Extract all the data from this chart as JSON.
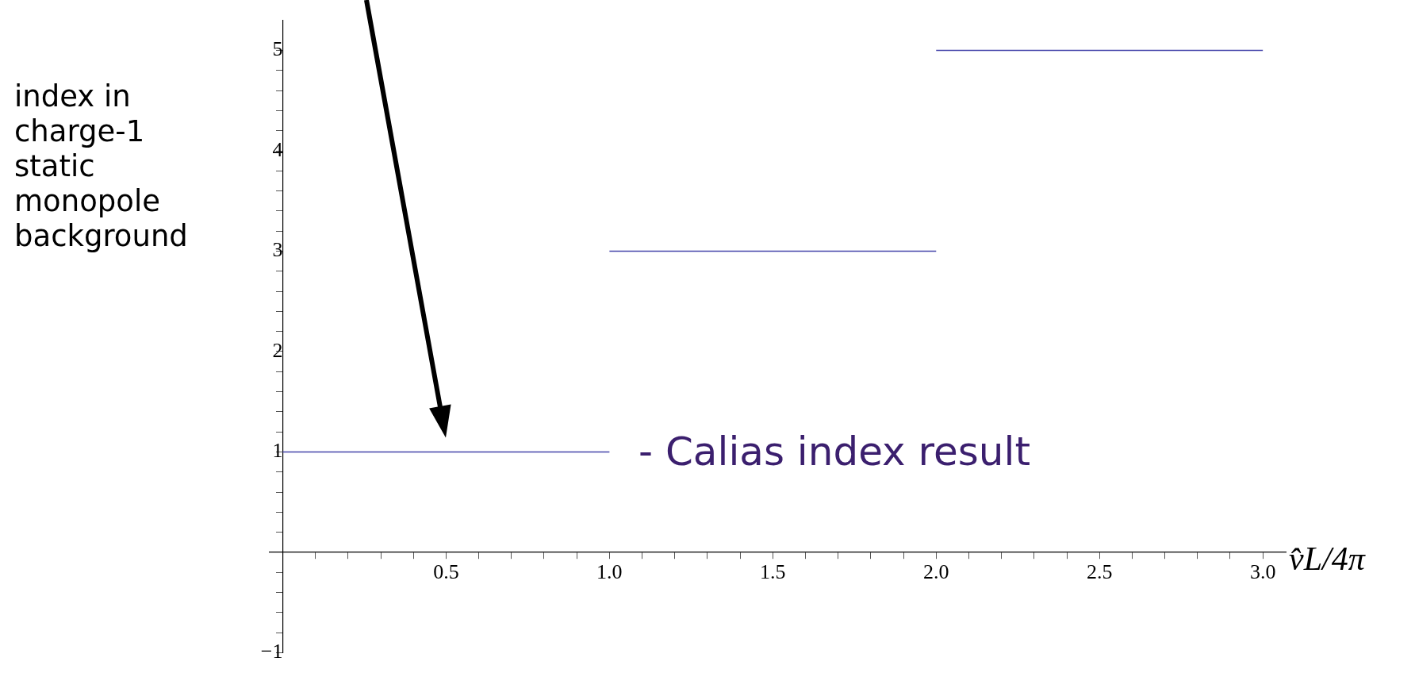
{
  "chart_data": {
    "type": "line",
    "xlabel": "v̂L/4π",
    "ylabel": "index in charge-1 static monopole background",
    "series": [
      {
        "color": "#4444aa",
        "x": [
          0,
          1
        ],
        "values": [
          1,
          1
        ]
      },
      {
        "color": "#4444aa",
        "x": [
          1,
          2
        ],
        "values": [
          3,
          3
        ]
      },
      {
        "color": "#4444aa",
        "x": [
          2,
          3
        ],
        "values": [
          5,
          5
        ]
      }
    ],
    "xlim": [
      -0.04,
      3.07
    ],
    "ylim": [
      -1,
      5.3
    ],
    "xticks": [
      {
        "value": 0.1,
        "label": null
      },
      {
        "value": 0.2,
        "label": null
      },
      {
        "value": 0.3,
        "label": null
      },
      {
        "value": 0.4,
        "label": null
      },
      0.5,
      {
        "value": 0.6,
        "label": null
      },
      {
        "value": 0.7,
        "label": null
      },
      {
        "value": 0.8,
        "label": null
      },
      {
        "value": 0.9,
        "label": null
      },
      {
        "value": 1,
        "label": "1.0"
      },
      {
        "value": 1.1,
        "label": null
      },
      {
        "value": 1.2,
        "label": null
      },
      {
        "value": 1.3,
        "label": null
      },
      {
        "value": 1.4,
        "label": null
      },
      1.5,
      {
        "value": 1.6,
        "label": null
      },
      {
        "value": 1.7,
        "label": null
      },
      {
        "value": 1.8,
        "label": null
      },
      {
        "value": 1.9,
        "label": null
      },
      {
        "value": 2,
        "label": "2.0"
      },
      {
        "value": 2.1,
        "label": null
      },
      {
        "value": 2.2,
        "label": null
      },
      {
        "value": 2.3,
        "label": null
      },
      {
        "value": 2.4,
        "label": null
      },
      2.5,
      {
        "value": 2.6,
        "label": null
      },
      {
        "value": 2.7,
        "label": null
      },
      {
        "value": 2.8,
        "label": null
      },
      {
        "value": 2.9,
        "label": null
      },
      {
        "value": 3,
        "label": "3.0"
      }
    ],
    "yticks": [
      {
        "value": -1,
        "label": "−1"
      },
      {
        "value": -0.8,
        "label": null
      },
      {
        "value": -0.6,
        "label": null
      },
      {
        "value": -0.4,
        "label": null
      },
      {
        "value": -0.2,
        "label": null
      },
      {
        "value": 0.2,
        "label": null
      },
      {
        "value": 0.4,
        "label": null
      },
      {
        "value": 0.6,
        "label": null
      },
      {
        "value": 0.8,
        "label": null
      },
      1,
      {
        "value": 1.2,
        "label": null
      },
      {
        "value": 1.4,
        "label": null
      },
      {
        "value": 1.6,
        "label": null
      },
      {
        "value": 1.8,
        "label": null
      },
      2,
      {
        "value": 2.2,
        "label": null
      },
      {
        "value": 2.4,
        "label": null
      },
      {
        "value": 2.6,
        "label": null
      },
      {
        "value": 2.8,
        "label": null
      },
      3,
      {
        "value": 3.2,
        "label": null
      },
      {
        "value": 3.4,
        "label": null
      },
      {
        "value": 3.6,
        "label": null
      },
      {
        "value": 3.8,
        "label": null
      },
      4,
      {
        "value": 4.2,
        "label": null
      },
      {
        "value": 4.4,
        "label": null
      },
      {
        "value": 4.6,
        "label": null
      },
      {
        "value": 4.8,
        "label": null
      },
      5
    ],
    "grid": false,
    "legend": false,
    "marker": "none",
    "line_style": "solid",
    "annotations": [
      "- Calias index result"
    ]
  }
}
